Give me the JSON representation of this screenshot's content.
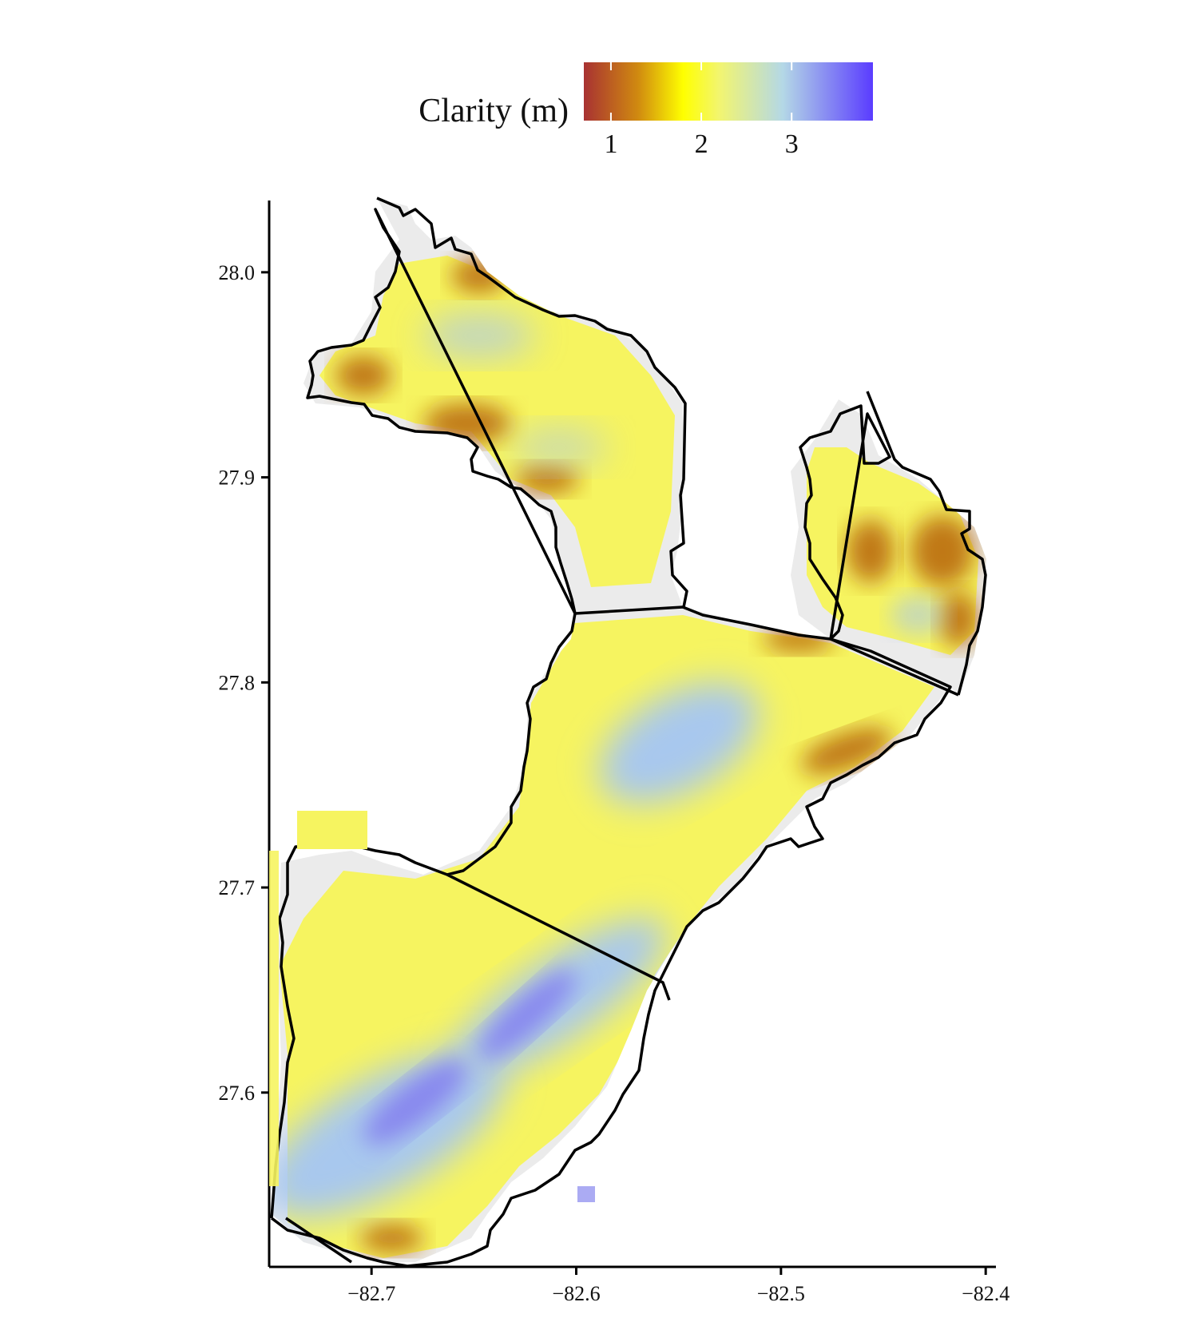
{
  "legend": {
    "title": "Clarity (m)",
    "ticks": [
      {
        "value": 1,
        "label": "1"
      },
      {
        "value": 2,
        "label": "2"
      },
      {
        "value": 3,
        "label": "3"
      }
    ],
    "range": [
      0.7,
      3.9
    ],
    "color_stops": [
      {
        "value": 0.7,
        "color": "#a83232"
      },
      {
        "value": 1.3,
        "color": "#d08a10"
      },
      {
        "value": 1.8,
        "color": "#ffff00"
      },
      {
        "value": 2.2,
        "color": "#f2f570"
      },
      {
        "value": 2.9,
        "color": "#b4d8e6"
      },
      {
        "value": 3.9,
        "color": "#5a3cff"
      }
    ]
  },
  "chart_data": {
    "type": "heatmap",
    "subject": "water clarity map with region boundaries",
    "x_axis": {
      "ticks": [
        {
          "value": -82.7,
          "label": "-82.7"
        },
        {
          "value": -82.6,
          "label": "-82.6"
        },
        {
          "value": -82.5,
          "label": "-82.5"
        },
        {
          "value": -82.4,
          "label": "-82.4"
        }
      ],
      "range": [
        -82.75,
        -82.395
      ]
    },
    "y_axis": {
      "ticks": [
        {
          "value": 27.6,
          "label": "27.6"
        },
        {
          "value": 27.7,
          "label": "27.7"
        },
        {
          "value": 27.8,
          "label": "27.8"
        },
        {
          "value": 27.9,
          "label": "27.9"
        },
        {
          "value": 28.0,
          "label": "28.0"
        }
      ],
      "range": [
        27.515,
        28.035
      ]
    },
    "colors": {
      "no_data_fill": "#ebebeb",
      "boundary": "#000000",
      "low": "#c07818",
      "mid": "#f6f460",
      "high": "#a8c8ee",
      "highest": "#8888ee"
    }
  }
}
